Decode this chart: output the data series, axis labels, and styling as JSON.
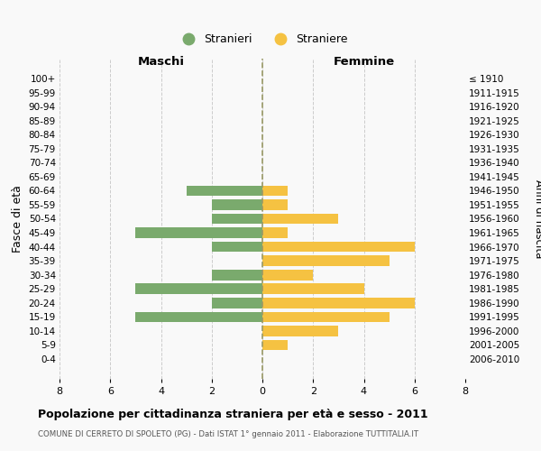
{
  "age_groups": [
    "100+",
    "95-99",
    "90-94",
    "85-89",
    "80-84",
    "75-79",
    "70-74",
    "65-69",
    "60-64",
    "55-59",
    "50-54",
    "45-49",
    "40-44",
    "35-39",
    "30-34",
    "25-29",
    "20-24",
    "15-19",
    "10-14",
    "5-9",
    "0-4"
  ],
  "birth_years": [
    "≤ 1910",
    "1911-1915",
    "1916-1920",
    "1921-1925",
    "1926-1930",
    "1931-1935",
    "1936-1940",
    "1941-1945",
    "1946-1950",
    "1951-1955",
    "1956-1960",
    "1961-1965",
    "1966-1970",
    "1971-1975",
    "1976-1980",
    "1981-1985",
    "1986-1990",
    "1991-1995",
    "1996-2000",
    "2001-2005",
    "2006-2010"
  ],
  "maschi": [
    0,
    0,
    0,
    0,
    0,
    0,
    0,
    0,
    3,
    2,
    2,
    5,
    2,
    0,
    2,
    5,
    2,
    5,
    0,
    0,
    0
  ],
  "femmine": [
    0,
    0,
    0,
    0,
    0,
    0,
    0,
    0,
    1,
    1,
    3,
    1,
    6,
    5,
    2,
    4,
    6,
    5,
    3,
    1,
    0
  ],
  "male_color": "#7aaa6d",
  "female_color": "#f5c242",
  "title": "Popolazione per cittadinanza straniera per età e sesso - 2011",
  "subtitle": "COMUNE DI CERRETO DI SPOLETO (PG) - Dati ISTAT 1° gennaio 2011 - Elaborazione TUTTITALIA.IT",
  "ylabel_left": "Fasce di età",
  "ylabel_right": "Anni di nascita",
  "xlabel_left": "Maschi",
  "xlabel_right": "Femmine",
  "legend_male": "Stranieri",
  "legend_female": "Straniere",
  "xlim": 8,
  "background_color": "#f9f9f9",
  "grid_color": "#cccccc"
}
